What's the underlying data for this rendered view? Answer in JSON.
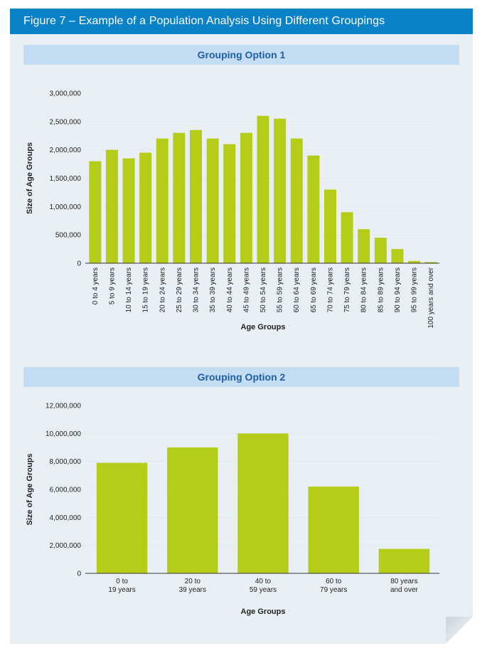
{
  "figure_title": "Figure 7 – Example of a Population Analysis Using Different Groupings",
  "colors": {
    "bar": "#b5cc18",
    "title_bg": "#0a82c8",
    "header_bg": "#c5ddf2",
    "header_text": "#1d5fa6",
    "panel_bg": "#e8f0f5"
  },
  "chart_data": [
    {
      "type": "bar",
      "title": "Grouping Option 1",
      "xlabel": "Age Groups",
      "ylabel": "Size of Age Groups",
      "ylim": [
        0,
        3000000
      ],
      "y_ticks": [
        "0",
        "500,000",
        "1,000,000",
        "1,500,000",
        "2,000,000",
        "2,500,000",
        "3,000,000"
      ],
      "grid": true,
      "categories": [
        "0 to 4 years",
        "5 to 9 years",
        "10 to 14 years",
        "15 to 19 years",
        "20 to 24 years",
        "25 to 29 years",
        "30 to 34 years",
        "35 to 39 years",
        "40 to 44 years",
        "45 to 49 years",
        "50 to 54 years",
        "55 to 59 years",
        "60 to 64 years",
        "65 to 69 years",
        "70 to 74 years",
        "75 to 79 years",
        "80 to 84 years",
        "85 to 89 years",
        "90 to 94 years",
        "95 to 99 years",
        "100 years and over"
      ],
      "values": [
        1800000,
        2000000,
        1850000,
        1950000,
        2200000,
        2300000,
        2350000,
        2200000,
        2100000,
        2300000,
        2600000,
        2550000,
        2200000,
        1900000,
        1300000,
        900000,
        600000,
        450000,
        250000,
        40000,
        20000
      ]
    },
    {
      "type": "bar",
      "title": "Grouping Option 2",
      "xlabel": "Age Groups",
      "ylabel": "Size of Age Groups",
      "ylim": [
        0,
        12000000
      ],
      "y_ticks": [
        "0",
        "2,000,000",
        "4,000,000",
        "6,000,000",
        "8,000,000",
        "10,000,000",
        "12,000,000"
      ],
      "grid": true,
      "categories": [
        [
          "0 to",
          "19 years"
        ],
        [
          "20 to",
          "39 years"
        ],
        [
          "40 to",
          "59 years"
        ],
        [
          "60 to",
          "79 years"
        ],
        [
          "80 years",
          "and over"
        ]
      ],
      "values": [
        7900000,
        9000000,
        10000000,
        6200000,
        1750000
      ]
    }
  ]
}
